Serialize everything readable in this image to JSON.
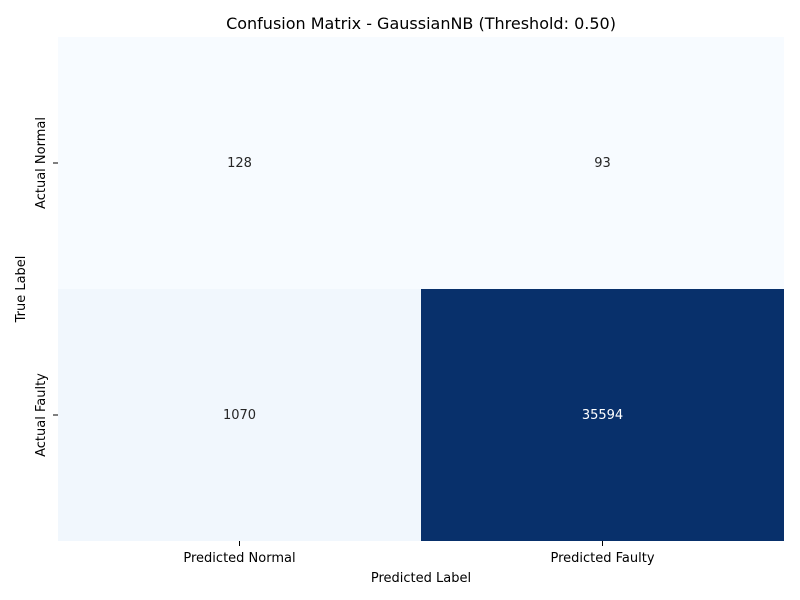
{
  "chart_data": {
    "type": "heatmap",
    "title": "Confusion Matrix - GaussianNB (Threshold: 0.50)",
    "xlabel": "Predicted Label",
    "ylabel": "True Label",
    "x_categories": [
      "Predicted Normal",
      "Predicted Faulty"
    ],
    "y_categories": [
      "Actual Normal",
      "Actual Faulty"
    ],
    "values": [
      [
        128,
        93
      ],
      [
        1070,
        35594
      ]
    ],
    "colormap": "Blues",
    "colorbar": false,
    "grid": false
  }
}
